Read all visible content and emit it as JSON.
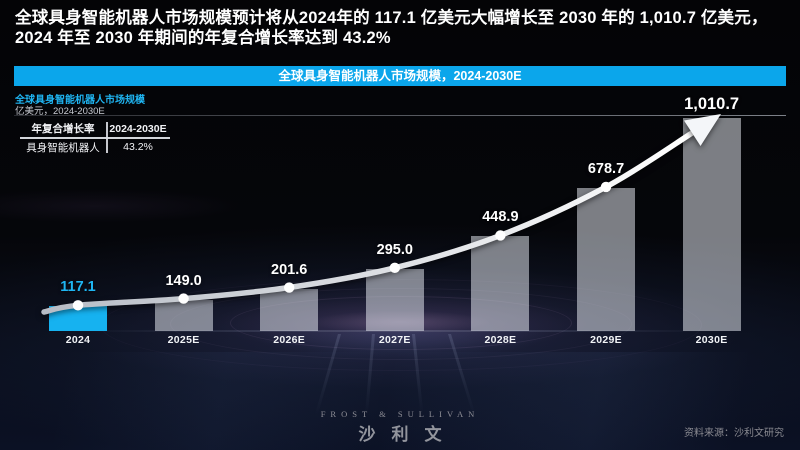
{
  "headline": {
    "line1": "全球具身智能机器人市场规模预计将从2024年的 117.1 亿美元大幅增长至 2030 年的 1,010.7 亿美元，",
    "line2": "2024 年至 2030 年期间的年复合增长率达到 43.2%"
  },
  "banner": {
    "title": "全球具身智能机器人市场规模，2024-2030E"
  },
  "panel": {
    "title": "全球具身智能机器人市场规模",
    "subtitle": "亿美元，2024-2030E"
  },
  "cagr_table": {
    "header": {
      "metric": "年复合增长率",
      "period": "2024-2030E"
    },
    "row": {
      "metric": "具身智能机器人",
      "value": "43.2%"
    }
  },
  "chart_data": {
    "type": "bar",
    "title": "全球具身智能机器人市场规模，2024-2030E",
    "unit_label": "亿美元",
    "series_name": "具身智能机器人",
    "categories": [
      "2024",
      "2025E",
      "2026E",
      "2027E",
      "2028E",
      "2029E",
      "2030E"
    ],
    "values": [
      117.1,
      149.0,
      201.6,
      295.0,
      448.9,
      678.7,
      1010.7
    ],
    "value_labels": [
      "117.1",
      "149.0",
      "201.6",
      "295.0",
      "448.9",
      "678.7",
      "1,010.7"
    ],
    "cagr_2024_2030": "43.2%",
    "ylim": [
      0,
      1024
    ],
    "highlight_index": 0,
    "trend": {
      "style": "curved-line-with-arrow",
      "marker": "white-dot"
    },
    "legend_position": "none",
    "grid": "top-rule-only"
  },
  "colors": {
    "accent_blue": "#0BA6EB",
    "highlight_bar": "#16B2F0",
    "highlight_value_label": "#1FB5F2",
    "ghost_bar": "rgba(233,238,245,0.52)",
    "trend_line_start": "#B7BCC5",
    "trend_line_end": "#FFFFFF",
    "value_label": "#FFFFFF",
    "background": "#050508"
  },
  "footer": {
    "logo_line1": "FROST & SULLIVAN",
    "logo_line2": "沙利文",
    "source": "资料来源：沙利文研究"
  }
}
